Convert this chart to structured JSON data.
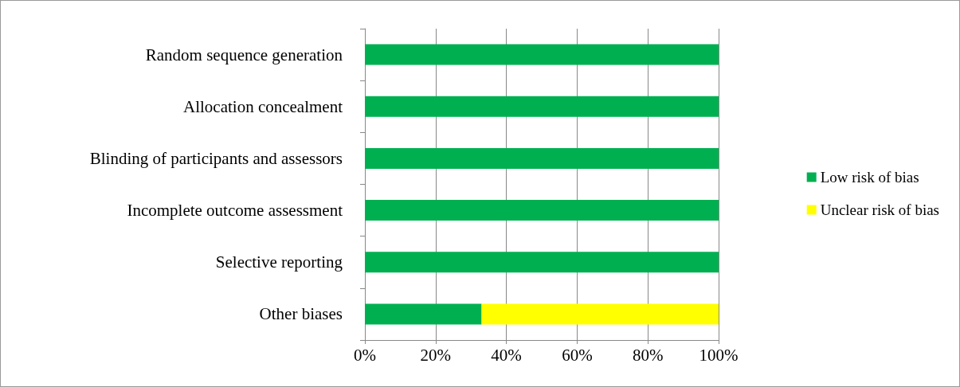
{
  "chart_data": {
    "type": "bar",
    "orientation": "horizontal",
    "stacked": true,
    "categories": [
      "Random sequence generation",
      "Allocation concealment",
      "Blinding of participants and assessors",
      "Incomplete outcome assessment",
      "Selective reporting",
      "Other biases"
    ],
    "series": [
      {
        "name": "Low risk of bias",
        "color": "#00b050",
        "values": [
          100,
          100,
          100,
          100,
          100,
          33
        ]
      },
      {
        "name": "Unclear risk of bias",
        "color": "#ffff00",
        "values": [
          0,
          0,
          0,
          0,
          0,
          67
        ]
      }
    ],
    "xlim": [
      0,
      100
    ],
    "xticks": [
      {
        "value": 0,
        "label": "0%"
      },
      {
        "value": 20,
        "label": "20%"
      },
      {
        "value": 40,
        "label": "40%"
      },
      {
        "value": 60,
        "label": "60%"
      },
      {
        "value": 80,
        "label": "80%"
      },
      {
        "value": 100,
        "label": "100%"
      }
    ],
    "grid": "x",
    "legend": "right"
  }
}
